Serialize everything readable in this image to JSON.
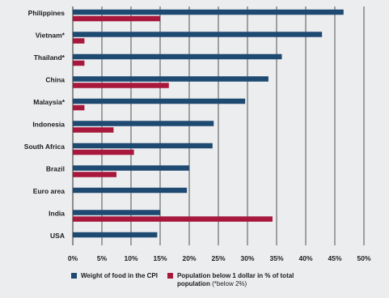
{
  "chart_data": {
    "type": "bar",
    "orientation": "horizontal",
    "categories": [
      "Philippines",
      "Vietnam*",
      "Thailand*",
      "China",
      "Malaysia*",
      "Indonesia",
      "South Africa",
      "Brazil",
      "Euro area",
      "India",
      "USA"
    ],
    "series": [
      {
        "name": "Weight of food in the CPI",
        "color": "#1e4a72",
        "values": [
          46.5,
          42.8,
          35.9,
          33.6,
          29.6,
          24.2,
          24.0,
          20.0,
          19.6,
          15.0,
          14.5
        ]
      },
      {
        "name": "Population below 1 dollar in % of total population",
        "note": "(*below 2%)",
        "color": "#a8173c",
        "values": [
          15.0,
          2.0,
          2.0,
          16.5,
          2.0,
          7.0,
          10.5,
          7.5,
          null,
          34.3,
          null
        ]
      }
    ],
    "xticks": [
      "0%",
      "5%",
      "10%",
      "15%",
      "20%",
      "25%",
      "30%",
      "35%",
      "40%",
      "45%",
      "50%"
    ],
    "xlim": [
      0,
      50
    ],
    "grid": true,
    "legend": "bottom"
  }
}
